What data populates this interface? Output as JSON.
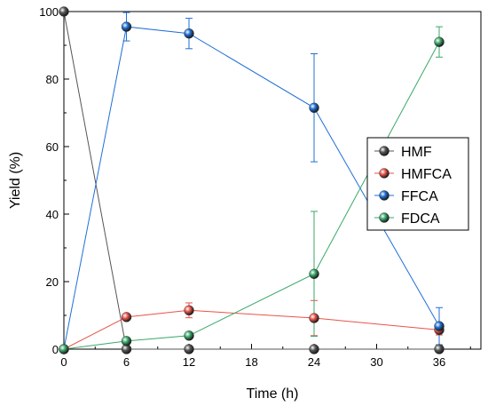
{
  "chart_data": {
    "type": "line",
    "xlabel": "Time (h)",
    "ylabel": "Yield (%)",
    "xlim": [
      0,
      40
    ],
    "ylim": [
      0,
      100
    ],
    "xticks": [
      0,
      6,
      12,
      18,
      24,
      30,
      36
    ],
    "yticks": [
      0,
      20,
      40,
      60,
      80,
      100
    ],
    "grid": false,
    "legend_position": "right",
    "x": [
      0,
      6,
      12,
      24,
      36
    ],
    "series": [
      {
        "name": "HMF",
        "color": "#555555",
        "values": [
          100,
          0,
          0,
          0,
          0
        ],
        "errors": [
          0,
          0,
          0,
          0,
          0
        ]
      },
      {
        "name": "HMFCA",
        "color": "#e8534a",
        "values": [
          0,
          9.5,
          11.5,
          9.2,
          5.7
        ],
        "errors": [
          0,
          0.8,
          2.2,
          5.2,
          1.5
        ]
      },
      {
        "name": "FFCA",
        "color": "#1f6fd6",
        "values": [
          0,
          95.5,
          93.5,
          71.5,
          6.8
        ],
        "errors": [
          0,
          4.2,
          4.5,
          16.0,
          5.5
        ]
      },
      {
        "name": "FDCA",
        "color": "#3aa86a",
        "values": [
          0,
          2.4,
          4.0,
          22.3,
          91.0
        ],
        "errors": [
          0,
          1.0,
          0.6,
          18.5,
          4.5
        ]
      }
    ]
  }
}
